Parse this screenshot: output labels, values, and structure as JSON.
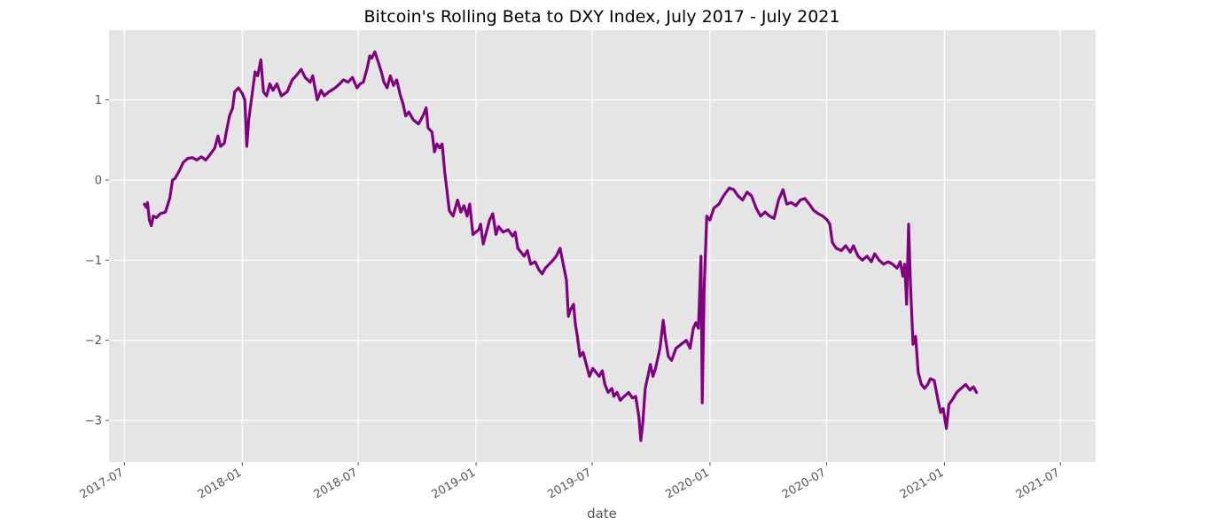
{
  "chart_data": {
    "type": "line",
    "title": "Bitcoin's Rolling Beta to DXY Index, July 2017 - July 2021",
    "xlabel": "date",
    "ylabel": "",
    "x_tick_labels": [
      "2017-07",
      "2018-01",
      "2018-07",
      "2019-01",
      "2019-07",
      "2020-01",
      "2020-07",
      "2021-01",
      "2021-07"
    ],
    "y_tick_labels": [
      "−3",
      "−2",
      "−1",
      "0",
      "1"
    ],
    "y_ticks": [
      -3,
      -2,
      -1,
      0,
      1
    ],
    "ylim": [
      -3.52,
      1.87
    ],
    "xlim": [
      "2017-06-07",
      "2021-08-25"
    ],
    "grid": true,
    "background_color": "#e5e5e5",
    "grid_color": "#ffffff",
    "line_color": "#800080",
    "series": [
      {
        "points": [
          [
            "2017-08-01",
            -0.3
          ],
          [
            "2017-08-04",
            -0.34
          ],
          [
            "2017-08-06",
            -0.28
          ],
          [
            "2017-08-09",
            -0.5
          ],
          [
            "2017-08-12",
            -0.57
          ],
          [
            "2017-08-15",
            -0.45
          ],
          [
            "2017-08-20",
            -0.47
          ],
          [
            "2017-08-26",
            -0.42
          ],
          [
            "2017-09-03",
            -0.4
          ],
          [
            "2017-09-10",
            -0.22
          ],
          [
            "2017-09-14",
            0.0
          ],
          [
            "2017-09-18",
            0.02
          ],
          [
            "2017-09-25",
            0.12
          ],
          [
            "2017-10-01",
            0.22
          ],
          [
            "2017-10-08",
            0.27
          ],
          [
            "2017-10-15",
            0.28
          ],
          [
            "2017-10-22",
            0.25
          ],
          [
            "2017-10-29",
            0.29
          ],
          [
            "2017-11-05",
            0.25
          ],
          [
            "2017-11-12",
            0.32
          ],
          [
            "2017-11-19",
            0.4
          ],
          [
            "2017-11-24",
            0.55
          ],
          [
            "2017-11-28",
            0.42
          ],
          [
            "2017-12-04",
            0.46
          ],
          [
            "2017-12-07",
            0.6
          ],
          [
            "2017-12-12",
            0.8
          ],
          [
            "2017-12-17",
            0.9
          ],
          [
            "2017-12-20",
            1.1
          ],
          [
            "2017-12-26",
            1.15
          ],
          [
            "2018-01-01",
            1.08
          ],
          [
            "2018-01-05",
            1.0
          ],
          [
            "2018-01-08",
            0.42
          ],
          [
            "2018-01-11",
            0.75
          ],
          [
            "2018-01-16",
            1.05
          ],
          [
            "2018-01-21",
            1.35
          ],
          [
            "2018-01-25",
            1.3
          ],
          [
            "2018-01-30",
            1.5
          ],
          [
            "2018-02-03",
            1.1
          ],
          [
            "2018-02-08",
            1.05
          ],
          [
            "2018-02-13",
            1.2
          ],
          [
            "2018-02-18",
            1.12
          ],
          [
            "2018-02-24",
            1.2
          ],
          [
            "2018-03-03",
            1.05
          ],
          [
            "2018-03-12",
            1.1
          ],
          [
            "2018-03-20",
            1.25
          ],
          [
            "2018-03-26",
            1.3
          ],
          [
            "2018-04-03",
            1.38
          ],
          [
            "2018-04-09",
            1.28
          ],
          [
            "2018-04-17",
            1.22
          ],
          [
            "2018-04-21",
            1.3
          ],
          [
            "2018-04-28",
            1.0
          ],
          [
            "2018-05-04",
            1.12
          ],
          [
            "2018-05-09",
            1.05
          ],
          [
            "2018-05-16",
            1.1
          ],
          [
            "2018-05-26",
            1.15
          ],
          [
            "2018-06-02",
            1.2
          ],
          [
            "2018-06-08",
            1.25
          ],
          [
            "2018-06-15",
            1.22
          ],
          [
            "2018-06-22",
            1.28
          ],
          [
            "2018-06-29",
            1.15
          ],
          [
            "2018-07-04",
            1.2
          ],
          [
            "2018-07-09",
            1.22
          ],
          [
            "2018-07-15",
            1.4
          ],
          [
            "2018-07-19",
            1.55
          ],
          [
            "2018-07-22",
            1.52
          ],
          [
            "2018-07-27",
            1.6
          ],
          [
            "2018-08-02",
            1.45
          ],
          [
            "2018-08-06",
            1.35
          ],
          [
            "2018-08-10",
            1.22
          ],
          [
            "2018-08-15",
            1.15
          ],
          [
            "2018-08-20",
            1.3
          ],
          [
            "2018-08-25",
            1.18
          ],
          [
            "2018-08-30",
            1.25
          ],
          [
            "2018-09-05",
            1.05
          ],
          [
            "2018-09-09",
            0.95
          ],
          [
            "2018-09-13",
            0.8
          ],
          [
            "2018-09-18",
            0.85
          ],
          [
            "2018-09-25",
            0.75
          ],
          [
            "2018-10-03",
            0.7
          ],
          [
            "2018-10-10",
            0.8
          ],
          [
            "2018-10-15",
            0.9
          ],
          [
            "2018-10-18",
            0.65
          ],
          [
            "2018-10-24",
            0.6
          ],
          [
            "2018-10-28",
            0.35
          ],
          [
            "2018-11-01",
            0.45
          ],
          [
            "2018-11-05",
            0.4
          ],
          [
            "2018-11-09",
            0.45
          ],
          [
            "2018-11-13",
            0.1
          ],
          [
            "2018-11-16",
            -0.1
          ],
          [
            "2018-11-20",
            -0.38
          ],
          [
            "2018-11-26",
            -0.45
          ],
          [
            "2018-12-03",
            -0.25
          ],
          [
            "2018-12-08",
            -0.4
          ],
          [
            "2018-12-13",
            -0.32
          ],
          [
            "2018-12-18",
            -0.45
          ],
          [
            "2018-12-22",
            -0.3
          ],
          [
            "2018-12-27",
            -0.68
          ],
          [
            "2019-01-05",
            -0.62
          ],
          [
            "2019-01-08",
            -0.55
          ],
          [
            "2019-01-12",
            -0.8
          ],
          [
            "2019-01-17",
            -0.65
          ],
          [
            "2019-01-22",
            -0.5
          ],
          [
            "2019-01-27",
            -0.42
          ],
          [
            "2019-02-01",
            -0.68
          ],
          [
            "2019-02-05",
            -0.58
          ],
          [
            "2019-02-12",
            -0.65
          ],
          [
            "2019-02-20",
            -0.62
          ],
          [
            "2019-02-27",
            -0.7
          ],
          [
            "2019-03-03",
            -0.65
          ],
          [
            "2019-03-07",
            -0.85
          ],
          [
            "2019-03-12",
            -0.9
          ],
          [
            "2019-03-17",
            -0.95
          ],
          [
            "2019-03-22",
            -0.88
          ],
          [
            "2019-03-27",
            -1.05
          ],
          [
            "2019-04-03",
            -1.02
          ],
          [
            "2019-04-09",
            -1.12
          ],
          [
            "2019-04-14",
            -1.17
          ],
          [
            "2019-04-19",
            -1.1
          ],
          [
            "2019-04-25",
            -1.05
          ],
          [
            "2019-05-01",
            -1.0
          ],
          [
            "2019-05-06",
            -0.95
          ],
          [
            "2019-05-12",
            -0.85
          ],
          [
            "2019-05-17",
            -1.05
          ],
          [
            "2019-05-22",
            -1.25
          ],
          [
            "2019-05-25",
            -1.7
          ],
          [
            "2019-05-28",
            -1.62
          ],
          [
            "2019-06-02",
            -1.55
          ],
          [
            "2019-06-05",
            -1.8
          ],
          [
            "2019-06-08",
            -1.95
          ],
          [
            "2019-06-12",
            -2.2
          ],
          [
            "2019-06-17",
            -2.15
          ],
          [
            "2019-06-22",
            -2.3
          ],
          [
            "2019-06-27",
            -2.45
          ],
          [
            "2019-07-02",
            -2.35
          ],
          [
            "2019-07-07",
            -2.4
          ],
          [
            "2019-07-12",
            -2.45
          ],
          [
            "2019-07-17",
            -2.38
          ],
          [
            "2019-07-21",
            -2.55
          ],
          [
            "2019-07-26",
            -2.65
          ],
          [
            "2019-08-01",
            -2.6
          ],
          [
            "2019-08-04",
            -2.7
          ],
          [
            "2019-08-09",
            -2.65
          ],
          [
            "2019-08-14",
            -2.75
          ],
          [
            "2019-08-20",
            -2.7
          ],
          [
            "2019-08-27",
            -2.65
          ],
          [
            "2019-09-02",
            -2.72
          ],
          [
            "2019-09-07",
            -2.7
          ],
          [
            "2019-09-12",
            -2.95
          ],
          [
            "2019-09-15",
            -3.25
          ],
          [
            "2019-09-18",
            -3.05
          ],
          [
            "2019-09-22",
            -2.6
          ],
          [
            "2019-09-26",
            -2.45
          ],
          [
            "2019-09-30",
            -2.3
          ],
          [
            "2019-10-04",
            -2.45
          ],
          [
            "2019-10-08",
            -2.35
          ],
          [
            "2019-10-15",
            -2.1
          ],
          [
            "2019-10-20",
            -1.75
          ],
          [
            "2019-10-23",
            -1.95
          ],
          [
            "2019-10-28",
            -2.2
          ],
          [
            "2019-11-02",
            -2.25
          ],
          [
            "2019-11-09",
            -2.1
          ],
          [
            "2019-11-17",
            -2.05
          ],
          [
            "2019-11-25",
            -2.0
          ],
          [
            "2019-12-01",
            -2.1
          ],
          [
            "2019-12-06",
            -1.85
          ],
          [
            "2019-12-10",
            -1.78
          ],
          [
            "2019-12-14",
            -1.85
          ],
          [
            "2019-12-18",
            -0.95
          ],
          [
            "2019-12-20",
            -2.78
          ],
          [
            "2019-12-23",
            -1.35
          ],
          [
            "2019-12-27",
            -0.45
          ],
          [
            "2020-01-01",
            -0.5
          ],
          [
            "2020-01-07",
            -0.35
          ],
          [
            "2020-01-15",
            -0.3
          ],
          [
            "2020-01-22",
            -0.2
          ],
          [
            "2020-01-31",
            -0.1
          ],
          [
            "2020-02-07",
            -0.12
          ],
          [
            "2020-02-14",
            -0.2
          ],
          [
            "2020-02-21",
            -0.25
          ],
          [
            "2020-02-28",
            -0.15
          ],
          [
            "2020-03-06",
            -0.2
          ],
          [
            "2020-03-13",
            -0.35
          ],
          [
            "2020-03-20",
            -0.45
          ],
          [
            "2020-03-27",
            -0.4
          ],
          [
            "2020-04-03",
            -0.45
          ],
          [
            "2020-04-10",
            -0.48
          ],
          [
            "2020-04-17",
            -0.25
          ],
          [
            "2020-04-24",
            -0.12
          ],
          [
            "2020-04-30",
            -0.3
          ],
          [
            "2020-05-07",
            -0.28
          ],
          [
            "2020-05-14",
            -0.32
          ],
          [
            "2020-05-21",
            -0.25
          ],
          [
            "2020-05-28",
            -0.23
          ],
          [
            "2020-06-04",
            -0.3
          ],
          [
            "2020-06-11",
            -0.38
          ],
          [
            "2020-06-18",
            -0.42
          ],
          [
            "2020-06-25",
            -0.45
          ],
          [
            "2020-07-02",
            -0.5
          ],
          [
            "2020-07-06",
            -0.55
          ],
          [
            "2020-07-10",
            -0.78
          ],
          [
            "2020-07-16",
            -0.85
          ],
          [
            "2020-07-24",
            -0.88
          ],
          [
            "2020-07-31",
            -0.82
          ],
          [
            "2020-08-07",
            -0.9
          ],
          [
            "2020-08-12",
            -0.82
          ],
          [
            "2020-08-19",
            -0.95
          ],
          [
            "2020-08-26",
            -1.0
          ],
          [
            "2020-09-02",
            -0.95
          ],
          [
            "2020-09-09",
            -1.02
          ],
          [
            "2020-09-14",
            -0.92
          ],
          [
            "2020-09-21",
            -1.0
          ],
          [
            "2020-09-28",
            -1.05
          ],
          [
            "2020-10-05",
            -1.02
          ],
          [
            "2020-10-12",
            -1.05
          ],
          [
            "2020-10-19",
            -1.1
          ],
          [
            "2020-10-24",
            -1.02
          ],
          [
            "2020-10-28",
            -1.2
          ],
          [
            "2020-10-31",
            -1.05
          ],
          [
            "2020-11-03",
            -1.55
          ],
          [
            "2020-11-06",
            -0.55
          ],
          [
            "2020-11-09",
            -1.3
          ],
          [
            "2020-11-13",
            -2.05
          ],
          [
            "2020-11-17",
            -1.95
          ],
          [
            "2020-11-21",
            -2.4
          ],
          [
            "2020-11-26",
            -2.55
          ],
          [
            "2020-12-01",
            -2.6
          ],
          [
            "2020-12-06",
            -2.55
          ],
          [
            "2020-12-10",
            -2.48
          ],
          [
            "2020-12-16",
            -2.5
          ],
          [
            "2020-12-22",
            -2.75
          ],
          [
            "2020-12-26",
            -2.9
          ],
          [
            "2020-12-30",
            -2.85
          ],
          [
            "2021-01-04",
            -3.1
          ],
          [
            "2021-01-08",
            -2.8
          ],
          [
            "2021-01-15",
            -2.72
          ],
          [
            "2021-01-20",
            -2.65
          ],
          [
            "2021-01-27",
            -2.6
          ],
          [
            "2021-02-03",
            -2.55
          ],
          [
            "2021-02-10",
            -2.62
          ],
          [
            "2021-02-15",
            -2.58
          ],
          [
            "2021-02-20",
            -2.65
          ]
        ]
      }
    ]
  }
}
